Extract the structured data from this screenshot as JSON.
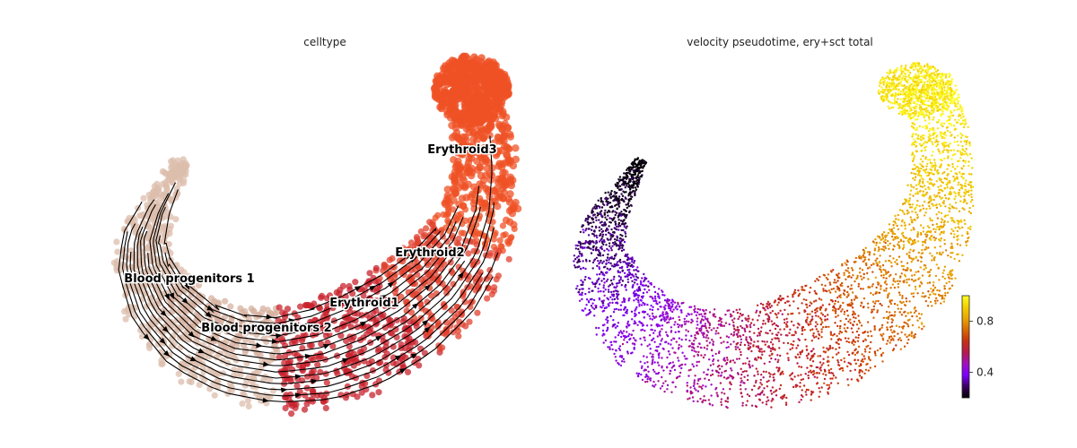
{
  "chart_data": [
    {
      "type": "scatter",
      "title": "celltype",
      "legend": "on-data",
      "grid": false,
      "axes_visible": false,
      "overlay": "velocity-streamlines",
      "categories": [
        {
          "name": "Blood progenitors 1",
          "color": "#dcbdac"
        },
        {
          "name": "Blood progenitors 2",
          "color": "#d7b2a0"
        },
        {
          "name": "Erythroid1",
          "color": "#c8232d"
        },
        {
          "name": "Erythroid2",
          "color": "#e0412f"
        },
        {
          "name": "Erythroid3",
          "color": "#ef5125"
        }
      ]
    },
    {
      "type": "scatter",
      "title": "velocity pseudotime, ery+sct total",
      "grid": false,
      "axes_visible": false,
      "colormap": "gnuplot",
      "colorbar": {
        "position": "right",
        "range": [
          0.2,
          1.0
        ],
        "ticks": [
          0.4,
          0.8
        ],
        "tick_labels": [
          "0.4",
          "0.8"
        ],
        "colors": [
          "#000000",
          "#3a0060",
          "#7d00ff",
          "#a10fc0",
          "#b61a4a",
          "#c83010",
          "#d86a00",
          "#e9a600",
          "#f3cf00",
          "#ffff20"
        ]
      }
    }
  ]
}
